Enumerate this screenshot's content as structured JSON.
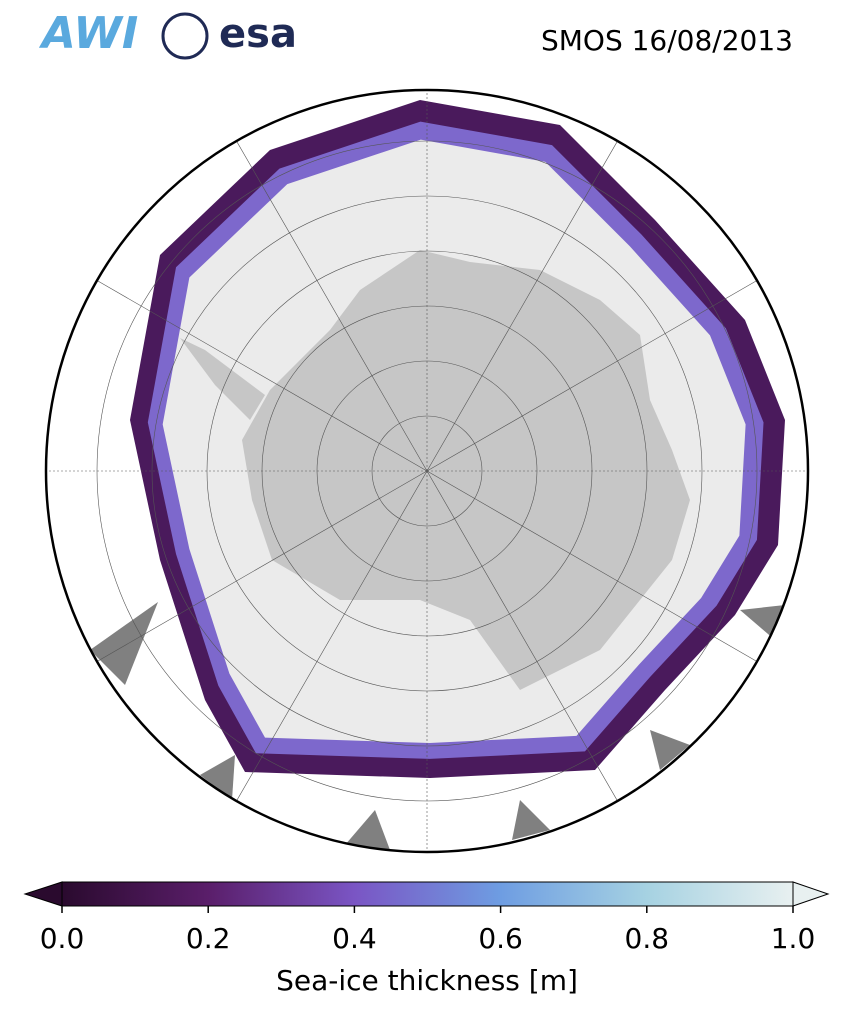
{
  "header": {
    "title": "SMOS 16/08/2013",
    "logos": [
      "AWI",
      "esa"
    ]
  },
  "colorbar": {
    "label": "Sea-ice thickness [m]",
    "lim": [
      0,
      1
    ],
    "ticks": [
      {
        "value": 0,
        "label": "0.0"
      },
      {
        "value": 0.2,
        "label": "0.2"
      },
      {
        "value": 0.4,
        "label": "0.4"
      },
      {
        "value": 0.6,
        "label": "0.6"
      },
      {
        "value": 0.8,
        "label": "0.8"
      },
      {
        "value": 1,
        "label": "1.0"
      }
    ],
    "colors": [
      "#2a0a2e",
      "#5a1e6a",
      "#7a55c4",
      "#6e9de2",
      "#a6d2e2",
      "#e8f0f0"
    ]
  }
}
